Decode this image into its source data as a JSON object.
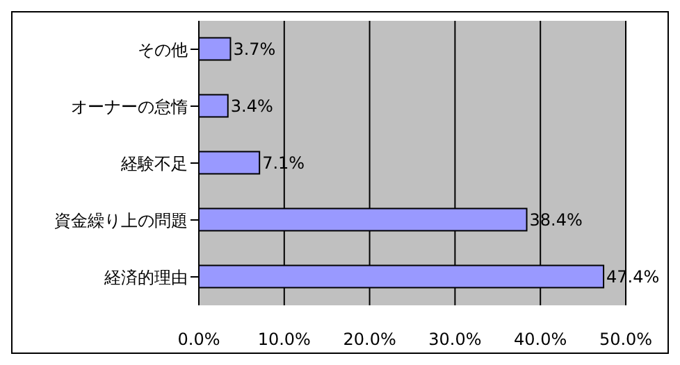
{
  "chart_data": {
    "type": "bar",
    "orientation": "horizontal",
    "categories": [
      "その他",
      "オーナーの怠惰",
      "経験不足",
      "資金繰り上の問題",
      "経済的理由"
    ],
    "values": [
      3.7,
      3.4,
      7.1,
      38.4,
      47.4
    ],
    "value_labels": [
      "3.7%",
      "3.4%",
      "7.1%",
      "38.4%",
      "47.4%"
    ],
    "color": "#9999ff",
    "xlim": [
      0,
      50
    ],
    "xticks": [
      {
        "value": 0,
        "label": "0.0%"
      },
      {
        "value": 10,
        "label": "10.0%"
      },
      {
        "value": 20,
        "label": "20.0%"
      },
      {
        "value": 30,
        "label": "30.0%"
      },
      {
        "value": 40,
        "label": "40.0%"
      },
      {
        "value": 50,
        "label": "50.0%"
      }
    ],
    "grid": "x"
  }
}
